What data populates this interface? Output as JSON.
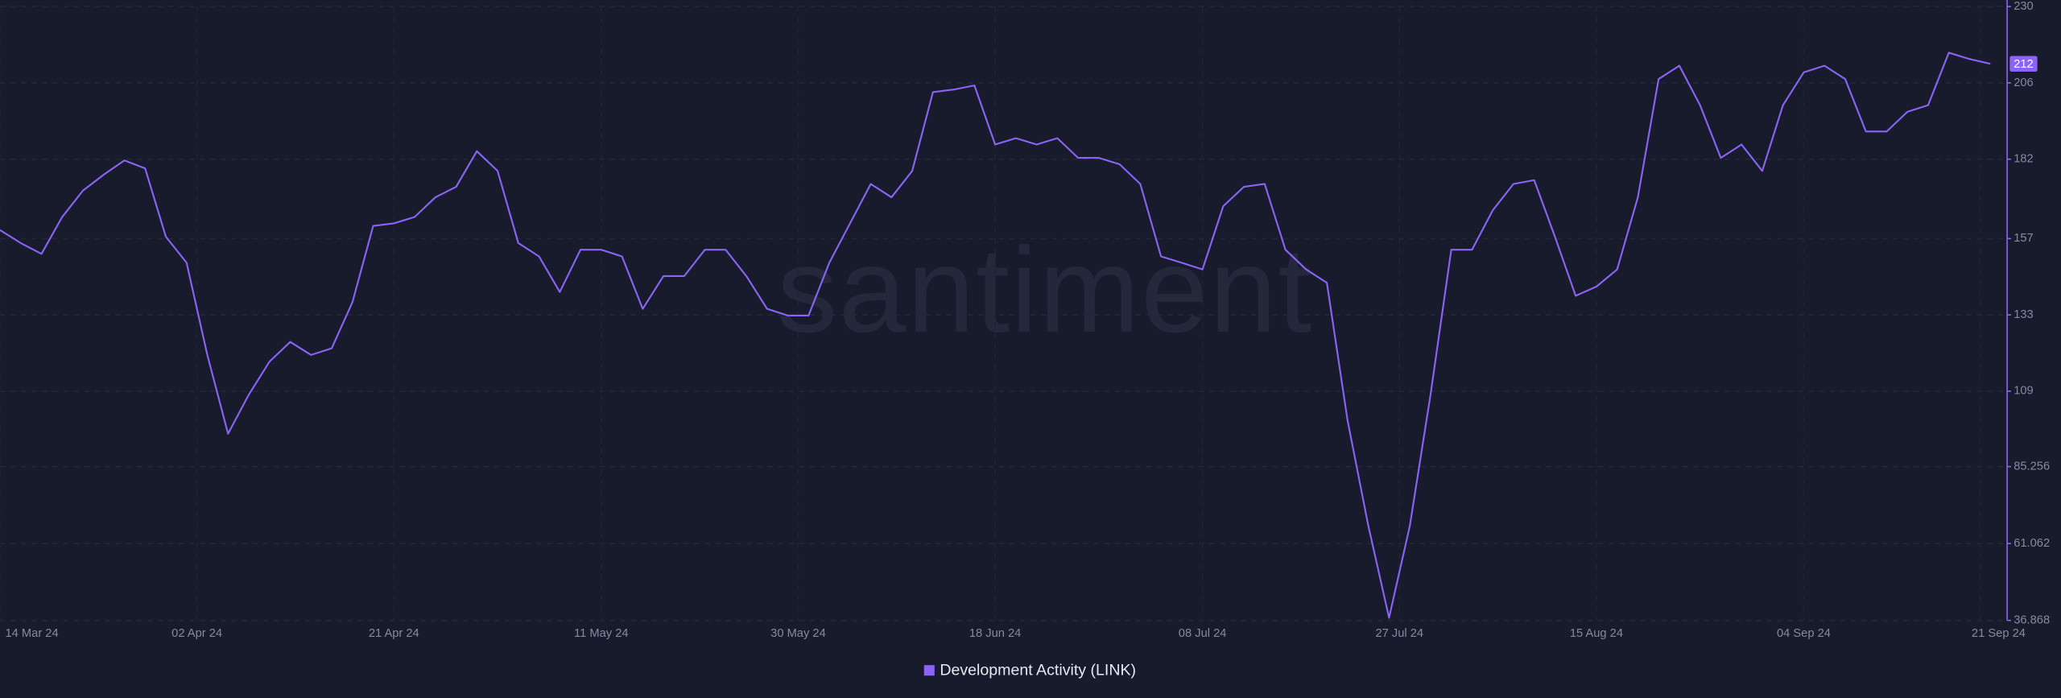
{
  "chart_data": {
    "type": "line",
    "watermark": "santiment",
    "x": [
      "14 Mar 24",
      "16 Mar 24",
      "18 Mar 24",
      "20 Mar 24",
      "22 Mar 24",
      "24 Mar 24",
      "26 Mar 24",
      "28 Mar 24",
      "30 Mar 24",
      "01 Apr 24",
      "03 Apr 24",
      "05 Apr 24",
      "07 Apr 24",
      "09 Apr 24",
      "11 Apr 24",
      "13 Apr 24",
      "15 Apr 24",
      "17 Apr 24",
      "19 Apr 24",
      "21 Apr 24",
      "23 Apr 24",
      "25 Apr 24",
      "27 Apr 24",
      "29 Apr 24",
      "01 May 24",
      "03 May 24",
      "05 May 24",
      "07 May 24",
      "09 May 24",
      "11 May 24",
      "13 May 24",
      "15 May 24",
      "17 May 24",
      "19 May 24",
      "21 May 24",
      "23 May 24",
      "25 May 24",
      "27 May 24",
      "29 May 24",
      "31 May 24",
      "02 Jun 24",
      "04 Jun 24",
      "06 Jun 24",
      "08 Jun 24",
      "10 Jun 24",
      "12 Jun 24",
      "14 Jun 24",
      "16 Jun 24",
      "18 Jun 24",
      "20 Jun 24",
      "22 Jun 24",
      "24 Jun 24",
      "26 Jun 24",
      "28 Jun 24",
      "30 Jun 24",
      "02 Jul 24",
      "04 Jul 24",
      "06 Jul 24",
      "08 Jul 24",
      "10 Jul 24",
      "12 Jul 24",
      "14 Jul 24",
      "16 Jul 24",
      "18 Jul 24",
      "20 Jul 24",
      "22 Jul 24",
      "24 Jul 24",
      "26 Jul 24",
      "28 Jul 24",
      "30 Jul 24",
      "01 Aug 24",
      "03 Aug 24",
      "05 Aug 24",
      "07 Aug 24",
      "09 Aug 24",
      "11 Aug 24",
      "13 Aug 24",
      "15 Aug 24",
      "17 Aug 24",
      "19 Aug 24",
      "21 Aug 24",
      "23 Aug 24",
      "25 Aug 24",
      "27 Aug 24",
      "29 Aug 24",
      "31 Aug 24",
      "02 Sep 24",
      "04 Sep 24",
      "06 Sep 24",
      "08 Sep 24",
      "10 Sep 24",
      "12 Sep 24",
      "14 Sep 24",
      "16 Sep 24",
      "18 Sep 24",
      "20 Sep 24",
      "22 Sep 24"
    ],
    "series": [
      {
        "name": "Development Activity (LINK)",
        "color": "#8b64f6",
        "values": [
          159.7,
          155.6,
          152.2,
          163.8,
          172.1,
          177.1,
          181.6,
          179.1,
          157.6,
          149.4,
          120.4,
          95.6,
          107.9,
          118.3,
          124.5,
          120.4,
          122.5,
          137.0,
          161.0,
          161.8,
          163.8,
          170.0,
          173.3,
          184.5,
          178.3,
          155.6,
          151.4,
          140.2,
          153.5,
          153.5,
          151.4,
          134.9,
          145.2,
          145.2,
          153.5,
          153.5,
          145.2,
          134.9,
          132.8,
          132.8,
          149.4,
          161.8,
          174.2,
          170.0,
          178.3,
          203.1,
          203.9,
          205.2,
          186.6,
          188.6,
          186.6,
          188.6,
          182.4,
          182.4,
          180.4,
          174.2,
          151.4,
          149.4,
          147.3,
          167.2,
          173.3,
          174.2,
          153.5,
          147.3,
          143.1,
          99.7,
          66.6,
          37.7,
          66.6,
          107.9,
          153.5,
          153.5,
          165.9,
          174.2,
          175.4,
          157.6,
          139.0,
          141.9,
          147.3,
          170.0,
          207.2,
          211.4,
          199.0,
          182.4,
          186.6,
          178.3,
          199.0,
          209.3,
          211.4,
          207.2,
          190.7,
          190.7,
          196.9,
          199.0,
          215.5,
          213.5,
          212
        ]
      }
    ],
    "xlim": [
      "14 Mar 24",
      "24 Sep 24"
    ],
    "xticks": [
      "14 Mar 24",
      "02 Apr 24",
      "21 Apr 24",
      "11 May 24",
      "30 May 24",
      "18 Jun 24",
      "08 Jul 24",
      "27 Jul 24",
      "15 Aug 24",
      "04 Sep 24",
      "21 Sep 24"
    ],
    "ylim": [
      36.868,
      230
    ],
    "yticks": [
      230,
      206,
      182,
      157,
      133,
      109,
      85.256,
      61.062,
      36.868
    ],
    "grid": true,
    "legend": "bottom"
  }
}
